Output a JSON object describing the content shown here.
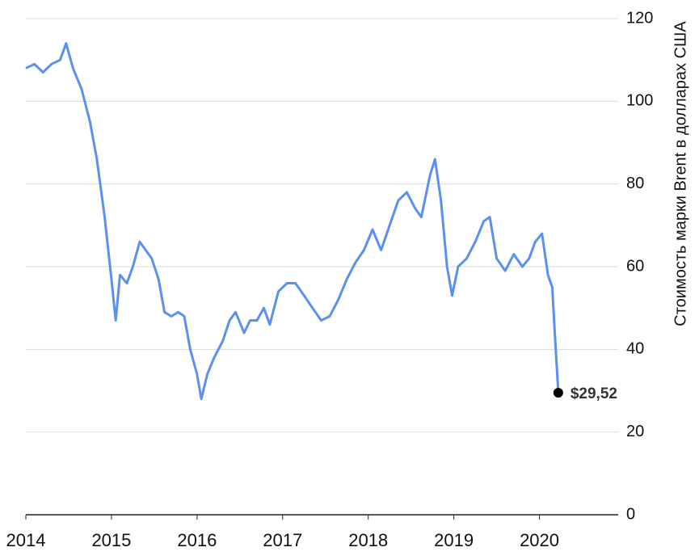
{
  "chart_data": {
    "type": "line",
    "y_label": "Стоимость марки Brent в долларах США",
    "x": [
      2014.0,
      2014.1,
      2014.2,
      2014.3,
      2014.4,
      2014.47,
      2014.55,
      2014.65,
      2014.75,
      2014.83,
      2014.92,
      2015.0,
      2015.05,
      2015.1,
      2015.18,
      2015.25,
      2015.33,
      2015.4,
      2015.47,
      2015.55,
      2015.62,
      2015.7,
      2015.78,
      2015.85,
      2015.92,
      2016.0,
      2016.05,
      2016.12,
      2016.2,
      2016.3,
      2016.38,
      2016.45,
      2016.55,
      2016.62,
      2016.7,
      2016.78,
      2016.85,
      2016.95,
      2017.05,
      2017.15,
      2017.25,
      2017.35,
      2017.45,
      2017.55,
      2017.65,
      2017.75,
      2017.85,
      2017.95,
      2018.05,
      2018.15,
      2018.25,
      2018.35,
      2018.45,
      2018.55,
      2018.62,
      2018.72,
      2018.78,
      2018.85,
      2018.92,
      2018.98,
      2019.05,
      2019.15,
      2019.25,
      2019.35,
      2019.42,
      2019.5,
      2019.6,
      2019.7,
      2019.8,
      2019.88,
      2019.95,
      2020.03,
      2020.1,
      2020.15,
      2020.19,
      2020.22
    ],
    "series": [
      {
        "color": "#5b8ff0",
        "values": [
          108,
          109,
          107,
          109,
          110,
          114,
          108,
          103,
          95,
          86,
          72,
          57,
          47,
          58,
          56,
          60,
          66,
          64,
          62,
          57,
          49,
          48,
          49,
          48,
          40,
          34,
          28,
          34,
          38,
          42,
          47,
          49,
          44,
          47,
          47,
          50,
          46,
          54,
          56,
          56,
          53,
          50,
          47,
          48,
          52,
          57,
          61,
          64,
          69,
          64,
          70,
          76,
          78,
          74,
          72,
          82,
          86,
          76,
          60,
          53,
          60,
          62,
          66,
          71,
          72,
          62,
          59,
          63,
          60,
          62,
          66,
          68,
          58,
          55,
          40,
          29.52
        ]
      }
    ],
    "annotations": [
      {
        "x": 2020.22,
        "y": 29.52,
        "label": "$29,52"
      }
    ],
    "xlim": [
      2014,
      2020.92
    ],
    "xticks": [
      2014,
      2015,
      2016,
      2017,
      2018,
      2019,
      2020
    ],
    "ylim": [
      0,
      120
    ],
    "yticks": [
      0,
      20,
      40,
      60,
      80,
      100,
      120
    ],
    "grid": true
  }
}
